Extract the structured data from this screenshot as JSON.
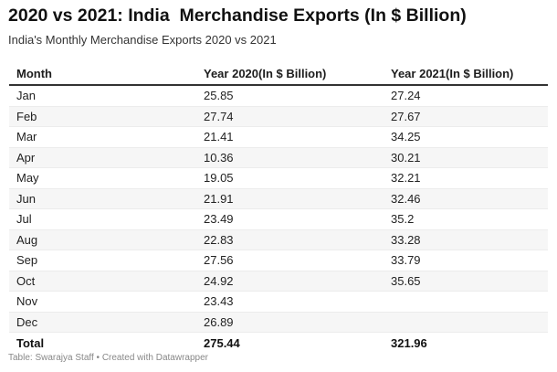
{
  "header": {
    "title": "2020 vs 2021: India  Merchandise Exports (In $ Billion)",
    "subtitle": "India's Monthly Merchandise Exports 2020 vs 2021"
  },
  "chart_data": {
    "type": "table",
    "columns": [
      "Month",
      "Year 2020(In $ Billion)",
      "Year 2021(In $ Billion)"
    ],
    "rows": [
      [
        "Jan",
        "25.85",
        "27.24"
      ],
      [
        "Feb",
        "27.74",
        "27.67"
      ],
      [
        "Mar",
        "21.41",
        "34.25"
      ],
      [
        "Apr",
        "10.36",
        "30.21"
      ],
      [
        "May",
        "19.05",
        "32.21"
      ],
      [
        "Jun",
        "21.91",
        "32.46"
      ],
      [
        "Jul",
        "23.49",
        "35.2"
      ],
      [
        "Aug",
        "22.83",
        "33.28"
      ],
      [
        "Sep",
        "27.56",
        "33.79"
      ],
      [
        "Oct",
        "24.92",
        "35.65"
      ],
      [
        "Nov",
        "23.43",
        ""
      ],
      [
        "Dec",
        "26.89",
        ""
      ]
    ],
    "total": [
      "Total",
      "275.44",
      "321.96"
    ]
  },
  "footer": {
    "text": "Table: Swarajya Staff • Created with Datawrapper"
  },
  "colors": {
    "stripe": "#f6f6f6",
    "header_rule": "#333333",
    "footer_text": "#888888"
  }
}
